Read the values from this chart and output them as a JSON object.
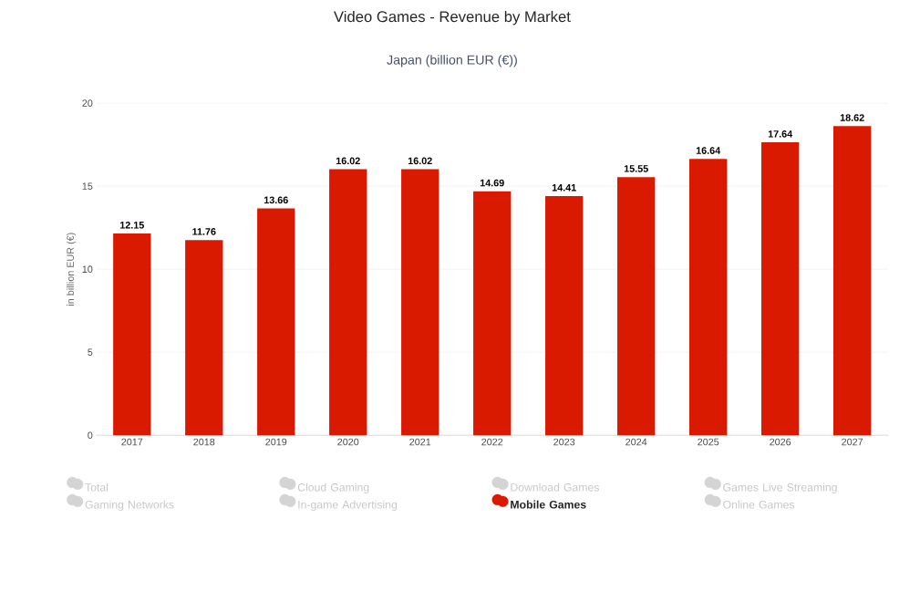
{
  "chart_data": {
    "type": "bar",
    "title": "Video Games - Revenue by Market",
    "subtitle": "Japan (billion EUR (€))",
    "ylabel": "in billion EUR (€)",
    "categories": [
      "2017",
      "2018",
      "2019",
      "2020",
      "2021",
      "2022",
      "2023",
      "2024",
      "2025",
      "2026",
      "2027"
    ],
    "series": [
      {
        "name": "Total",
        "color": "#d4d4d4",
        "values": [
          null,
          null,
          null,
          null,
          null,
          null,
          null,
          null,
          null,
          null,
          null
        ]
      },
      {
        "name": "Cloud Gaming",
        "color": "#d4d4d4",
        "values": [
          null,
          null,
          null,
          null,
          null,
          null,
          null,
          null,
          null,
          null,
          null
        ]
      },
      {
        "name": "Download Games",
        "color": "#d4d4d4",
        "values": [
          null,
          null,
          null,
          null,
          null,
          null,
          null,
          null,
          null,
          null,
          null
        ]
      },
      {
        "name": "Games Live Streaming",
        "color": "#d4d4d4",
        "values": [
          null,
          null,
          null,
          null,
          null,
          null,
          null,
          null,
          null,
          null,
          null
        ]
      },
      {
        "name": "Gaming Networks",
        "color": "#d4d4d4",
        "values": [
          null,
          null,
          null,
          null,
          null,
          null,
          null,
          null,
          null,
          null,
          null
        ]
      },
      {
        "name": "In-game Advertising",
        "color": "#d4d4d4",
        "values": [
          null,
          null,
          null,
          null,
          null,
          null,
          null,
          null,
          null,
          null,
          null
        ]
      },
      {
        "name": "Mobile Games",
        "color": "#d91a00",
        "values": [
          12.15,
          11.76,
          13.66,
          16.02,
          16.02,
          14.69,
          14.41,
          15.55,
          16.64,
          17.64,
          18.62
        ]
      },
      {
        "name": "Online Games",
        "color": "#d4d4d4",
        "values": [
          null,
          null,
          null,
          null,
          null,
          null,
          null,
          null,
          null,
          null,
          null
        ]
      }
    ],
    "ylim": [
      0,
      20
    ],
    "yticks": [
      0,
      5,
      10,
      15,
      20
    ],
    "grid": "y",
    "legend": "bottom",
    "data_labels": true
  }
}
